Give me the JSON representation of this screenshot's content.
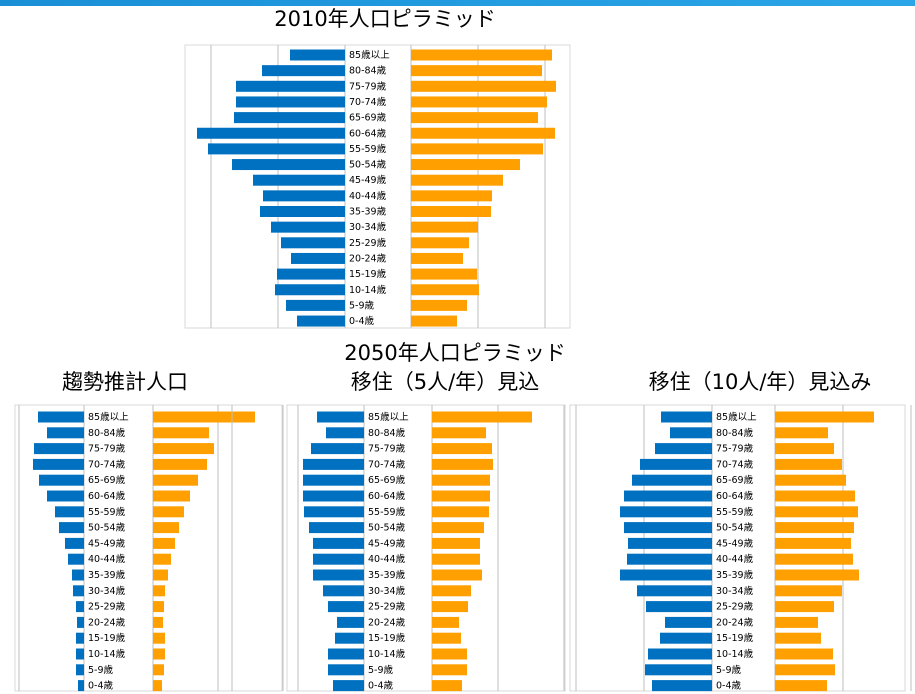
{
  "heading": "2050年人口ピラミッド",
  "charts": [
    {
      "type": "pyramid",
      "title": "2010年人口ピラミッド",
      "categories": [
        "85歳以上",
        "80-84歳",
        "75-79歳",
        "70-74歳",
        "65-69歳",
        "60-64歳",
        "55-59歳",
        "50-54歳",
        "45-49歳",
        "40-44歳",
        "35-39歳",
        "30-34歳",
        "25-29歳",
        "20-24歳",
        "15-19歳",
        "10-14歳",
        "5-9歳",
        "0-4歳"
      ],
      "xlim": [
        0,
        160
      ],
      "xticks": [
        0,
        67,
        134
      ],
      "grid": true,
      "series": [
        {
          "color": "#0070c0",
          "values": [
            55,
            83,
            109,
            109,
            111,
            148,
            137,
            113,
            92,
            82,
            85,
            74,
            64,
            54,
            68,
            70,
            59,
            48
          ]
        },
        {
          "color": "#ffa000",
          "values": [
            141,
            131,
            145,
            136,
            127,
            144,
            132,
            109,
            92,
            81,
            80,
            67,
            58,
            52,
            66,
            68,
            56,
            46
          ]
        }
      ]
    },
    {
      "type": "pyramid",
      "title": "趨勢推計人口",
      "categories": [
        "85歳以上",
        "80-84歳",
        "75-79歳",
        "70-74歳",
        "65-69歳",
        "60-64歳",
        "55-59歳",
        "50-54歳",
        "45-49歳",
        "40-44歳",
        "35-39歳",
        "30-34歳",
        "25-29歳",
        "20-24歳",
        "15-19歳",
        "10-14歳",
        "5-9歳",
        "0-4歳"
      ],
      "xlim": [
        0,
        130
      ],
      "xticks": [
        0,
        65,
        130
      ],
      "grid": true,
      "series": [
        {
          "color": "#0070c0",
          "values": [
            46,
            37,
            50,
            51,
            45,
            37,
            29,
            25,
            19,
            16,
            12,
            11,
            8,
            7,
            8,
            8,
            8,
            6
          ]
        },
        {
          "color": "#ffa000",
          "values": [
            102,
            56,
            61,
            54,
            45,
            37,
            31,
            26,
            22,
            18,
            15,
            12,
            11,
            10,
            12,
            12,
            11,
            9
          ]
        }
      ]
    },
    {
      "type": "pyramid",
      "title": "移住（5人/年）見込",
      "categories": [
        "85歳以上",
        "80-84歳",
        "75-79歳",
        "70-74歳",
        "65-69歳",
        "60-64歳",
        "55-59歳",
        "50-54歳",
        "45-49歳",
        "40-44歳",
        "35-39歳",
        "30-34歳",
        "25-29歳",
        "20-24歳",
        "15-19歳",
        "10-14歳",
        "5-9歳",
        "0-4歳"
      ],
      "xlim": [
        0,
        130
      ],
      "xticks": [
        0,
        66,
        132
      ],
      "grid": true,
      "series": [
        {
          "color": "#0070c0",
          "values": [
            47,
            38,
            53,
            61,
            61,
            61,
            60,
            55,
            51,
            51,
            51,
            41,
            36,
            27,
            29,
            36,
            36,
            31
          ]
        },
        {
          "color": "#ffa000",
          "values": [
            100,
            54,
            60,
            61,
            58,
            58,
            57,
            52,
            48,
            48,
            50,
            39,
            36,
            27,
            29,
            35,
            35,
            30
          ]
        }
      ]
    },
    {
      "type": "pyramid",
      "title": "移住（10人/年）見込み",
      "categories": [
        "85歳以上",
        "80-84歳",
        "75-79歳",
        "70-74歳",
        "65-69歳",
        "60-64歳",
        "55-59歳",
        "50-54歳",
        "45-49歳",
        "40-44歳",
        "35-39歳",
        "30-34歳",
        "25-29歳",
        "20-24歳",
        "15-19歳",
        "10-14歳",
        "5-9歳",
        "0-4歳"
      ],
      "xlim": [
        0,
        140
      ],
      "xticks": [
        0,
        68,
        136
      ],
      "grid": true,
      "series": [
        {
          "color": "#0070c0",
          "values": [
            51,
            42,
            57,
            72,
            80,
            88,
            92,
            88,
            84,
            85,
            92,
            75,
            66,
            47,
            52,
            64,
            67,
            60
          ]
        },
        {
          "color": "#ffa000",
          "values": [
            99,
            53,
            59,
            67,
            71,
            80,
            83,
            79,
            76,
            78,
            84,
            67,
            59,
            43,
            46,
            58,
            60,
            52
          ]
        }
      ]
    }
  ]
}
